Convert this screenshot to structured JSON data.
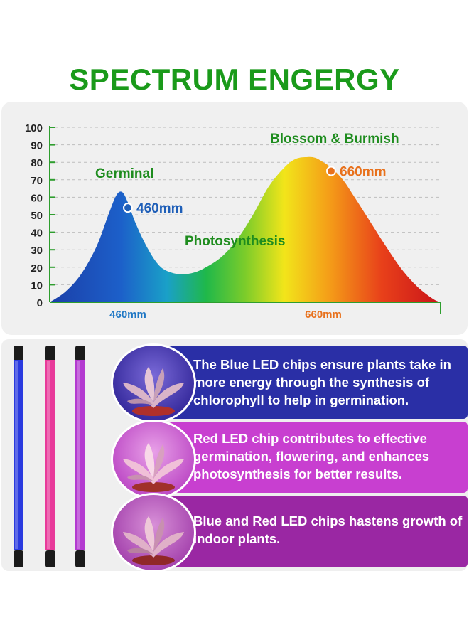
{
  "page": {
    "title": "SPECTRUM ENGERGY",
    "title_color": "#1a9a1a"
  },
  "chart_data": {
    "type": "area",
    "title": "SPECTRUM ENGERGY",
    "yticks": [
      0,
      10,
      20,
      30,
      40,
      50,
      60,
      70,
      80,
      90,
      100
    ],
    "ylim": [
      0,
      100
    ],
    "xlim": [
      0,
      100
    ],
    "xtick_labels": [
      {
        "label": "460mm",
        "x": 20
      },
      {
        "label": "660mm",
        "x": 70
      }
    ],
    "grid": "horizontal dashed",
    "series": [
      {
        "x": [
          0,
          4,
          8,
          12,
          15,
          17,
          18.5,
          20,
          22,
          25,
          28,
          31,
          34,
          37,
          40,
          44,
          48,
          52,
          56,
          60,
          63,
          66,
          68,
          70,
          72,
          75,
          78,
          82,
          86,
          90,
          94,
          98,
          100
        ],
        "y": [
          0,
          6,
          16,
          32,
          50,
          61,
          63,
          57,
          45,
          31,
          21,
          17,
          16,
          17,
          20,
          26,
          36,
          50,
          66,
          77,
          82,
          83,
          82.5,
          80,
          77,
          70,
          60,
          46,
          32,
          19,
          9,
          2,
          0
        ]
      }
    ],
    "points": [
      {
        "label": "460mm",
        "x": 20,
        "y": 54,
        "color": "#1f5fb8"
      },
      {
        "label": "660mm",
        "x": 72,
        "y": 75,
        "color": "#e8711c"
      }
    ],
    "annotations": [
      {
        "text": "Germinal",
        "color": "#1e8c1e"
      },
      {
        "text": "Photosynthesis",
        "color": "#1e8c1e"
      },
      {
        "text": "Blossom & Burmish",
        "color": "#1e8c1e"
      }
    ],
    "axis_color": "#2e9e2e",
    "tick_label_color": "#222222",
    "x_label_colors": {
      "460mm": "#1f77c4",
      "660mm": "#e8711c"
    }
  },
  "info": {
    "items": [
      {
        "text": "The Blue LED chips ensure plants take in more energy through the synthesis of chlorophyll to help in germination.",
        "color": "#2a2fa6"
      },
      {
        "text": "Red LED chip contributes to effective germination, flowering, and enhances photosynthesis for better results.",
        "color": "#c83fd0"
      },
      {
        "text": "Blue and Red LED chips hastens growth of indoor plants.",
        "color": "#9a27a3"
      }
    ]
  },
  "lights": {
    "tube_colors": [
      "#2a3adf",
      "#e83a9a",
      "#b33ad0"
    ]
  }
}
